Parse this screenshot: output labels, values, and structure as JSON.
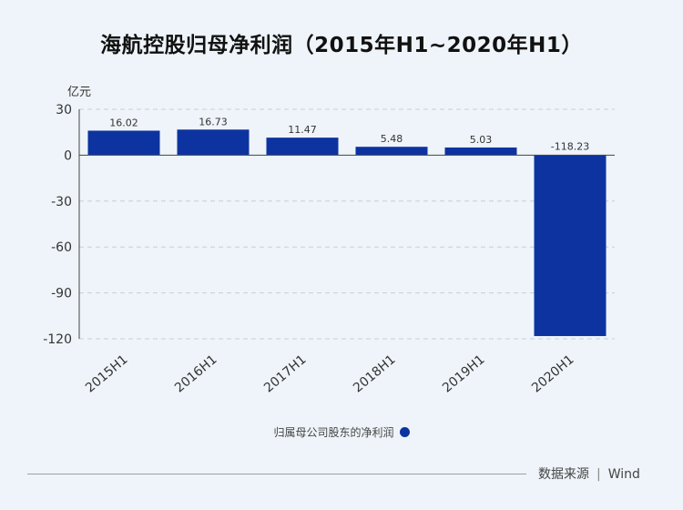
{
  "title": "海航控股归母净利润（2015年H1~2020年H1）",
  "unit": "亿元",
  "legend_label": "归属母公司股东的净利润",
  "source": {
    "label": "数据来源",
    "separator": "|",
    "name": "Wind"
  },
  "colors": {
    "bar": "#0d33a0",
    "background": "#eef4f9",
    "grid": "#c8ced6",
    "axis": "#444444"
  },
  "chart_data": {
    "type": "bar",
    "categories": [
      "2015H1",
      "2016H1",
      "2017H1",
      "2018H1",
      "2019H1",
      "2020H1"
    ],
    "series": [
      {
        "name": "归属母公司股东的净利润",
        "values": [
          16.02,
          16.73,
          11.47,
          5.48,
          5.03,
          -118.23
        ]
      }
    ],
    "data_labels": [
      "16.02",
      "16.73",
      "11.47",
      "5.48",
      "5.03",
      "-118.23"
    ],
    "title": "海航控股归母净利润（2015年H1~2020年H1）",
    "ylabel": "亿元",
    "xlabel": "",
    "ylim": [
      -120,
      30
    ],
    "yticks": [
      30,
      0,
      -30,
      -60,
      -90,
      -120
    ],
    "grid": true,
    "legend_position": "bottom"
  }
}
